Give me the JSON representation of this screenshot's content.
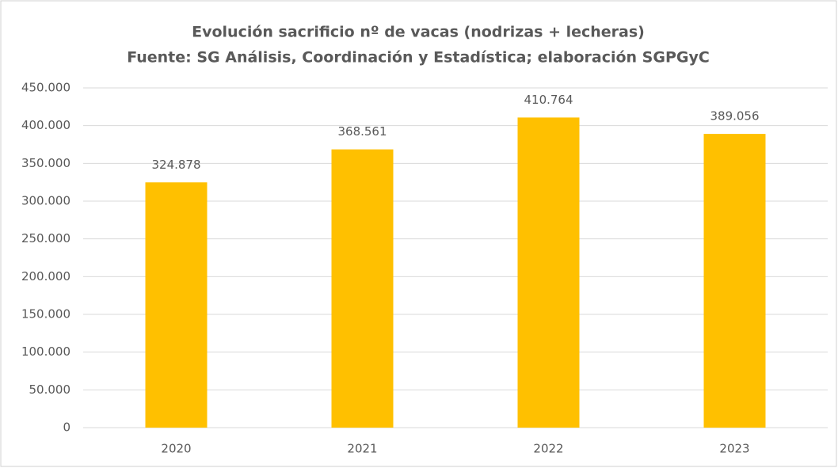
{
  "chart_data": {
    "type": "bar",
    "title": "Evolución sacrificio nº de vacas (nodrizas + lecheras)",
    "subtitle": "Fuente: SG Análisis, Coordinación y Estadística; elaboración SGPGyC",
    "categories": [
      "2020",
      "2021",
      "2022",
      "2023"
    ],
    "values": [
      324878,
      368561,
      410764,
      389056
    ],
    "value_labels": [
      "324.878",
      "368.561",
      "410.764",
      "389.056"
    ],
    "color": "#ffc000",
    "ylim": [
      0,
      450000
    ],
    "yticks": [
      0,
      {
        "value": 50000,
        "label": "50.000"
      },
      {
        "value": 100000,
        "label": "100.000"
      },
      {
        "value": 150000,
        "label": "150.000"
      },
      {
        "value": 200000,
        "label": "200.000"
      },
      {
        "value": 250000,
        "label": "250.000"
      },
      {
        "value": 300000,
        "label": "300.000"
      },
      {
        "value": 350000,
        "label": "350.000"
      },
      {
        "value": 400000,
        "label": "400.000"
      },
      {
        "value": 450000,
        "label": "450.000"
      }
    ],
    "grid": true
  }
}
